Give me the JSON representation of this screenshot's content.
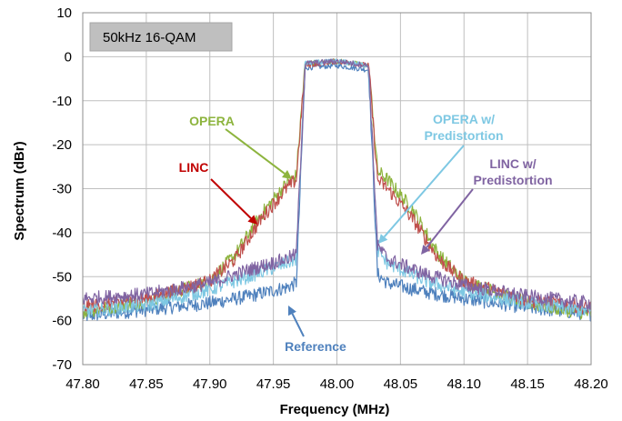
{
  "chart_data": {
    "type": "line",
    "title": "",
    "xlabel": "Frequency (MHz)",
    "ylabel": "Spectrum (dBr)",
    "xlim": [
      47.8,
      48.2
    ],
    "ylim": [
      -70,
      10
    ],
    "x_ticks": [
      "47.80",
      "47.85",
      "47.90",
      "47.95",
      "48.00",
      "48.05",
      "48.10",
      "48.15",
      "48.20"
    ],
    "y_ticks": [
      "10",
      "0",
      "-10",
      "-20",
      "-30",
      "-40",
      "-50",
      "-60",
      "-70"
    ],
    "grid": true,
    "legend_box": "50kHz 16-QAM",
    "series": [
      {
        "name": "OPERA",
        "color": "#8DB43E",
        "x": [
          47.8,
          47.85,
          47.9,
          47.92,
          47.94,
          47.96,
          47.968,
          47.975,
          48.0,
          48.025,
          48.032,
          48.04,
          48.06,
          48.08,
          48.1,
          48.15,
          48.2
        ],
        "y": [
          -58,
          -55.5,
          -51,
          -45,
          -36,
          -29,
          -27,
          -1.5,
          -1,
          -2,
          -26,
          -28,
          -35,
          -45,
          -51,
          -56,
          -58.5
        ]
      },
      {
        "name": "LINC",
        "color": "#C0504D",
        "x": [
          47.8,
          47.85,
          47.9,
          47.92,
          47.94,
          47.96,
          47.968,
          47.975,
          48.0,
          48.025,
          48.032,
          48.04,
          48.06,
          48.08,
          48.1,
          48.15,
          48.2
        ],
        "y": [
          -57,
          -55,
          -51,
          -46,
          -37,
          -30,
          -28,
          -2,
          -1,
          -2,
          -28,
          -30,
          -37,
          -46,
          -51,
          -55.5,
          -57
        ]
      },
      {
        "name": "OPERA w/ Predistortion",
        "color": "#7EC8E3",
        "x": [
          47.8,
          47.85,
          47.9,
          47.93,
          47.96,
          47.968,
          47.975,
          48.0,
          48.025,
          48.032,
          48.04,
          48.07,
          48.1,
          48.15,
          48.2
        ],
        "y": [
          -58,
          -56.5,
          -53,
          -50,
          -47,
          -46,
          -1.5,
          -1,
          -2,
          -44,
          -47,
          -51,
          -53.5,
          -56,
          -58
        ]
      },
      {
        "name": "LINC w/ Predistortion",
        "color": "#8064A2",
        "x": [
          47.8,
          47.85,
          47.9,
          47.93,
          47.96,
          47.968,
          47.975,
          48.0,
          48.025,
          48.032,
          48.04,
          48.07,
          48.1,
          48.15,
          48.2
        ],
        "y": [
          -55,
          -54,
          -51.5,
          -48.5,
          -46,
          -45,
          -1.5,
          -1,
          -2,
          -43,
          -46,
          -49.5,
          -52,
          -54.5,
          -56
        ]
      },
      {
        "name": "Reference",
        "color": "#4F81BD",
        "x": [
          47.8,
          47.85,
          47.9,
          47.93,
          47.96,
          47.968,
          47.975,
          48.0,
          48.025,
          48.032,
          48.04,
          48.07,
          48.1,
          48.15,
          48.2
        ],
        "y": [
          -59,
          -57.5,
          -56,
          -54.5,
          -52.5,
          -51.5,
          -2.5,
          -2,
          -3,
          -49.5,
          -51.5,
          -53.5,
          -55,
          -57,
          -58.5
        ]
      }
    ],
    "annotations": [
      {
        "text": "OPERA",
        "color": "#8DB43E",
        "lines": [
          "OPERA"
        ]
      },
      {
        "text": "LINC",
        "color": "#C00000",
        "lines": [
          "LINC"
        ]
      },
      {
        "text": "OPERA w/ Predistortion",
        "color": "#7EC8E3",
        "lines": [
          "OPERA w/",
          "Predistortion"
        ]
      },
      {
        "text": "LINC w/ Predistortion",
        "color": "#8064A2",
        "lines": [
          "LINC w/",
          "Predistortion"
        ]
      },
      {
        "text": "Reference",
        "color": "#4F81BD",
        "lines": [
          "Reference"
        ]
      }
    ]
  }
}
